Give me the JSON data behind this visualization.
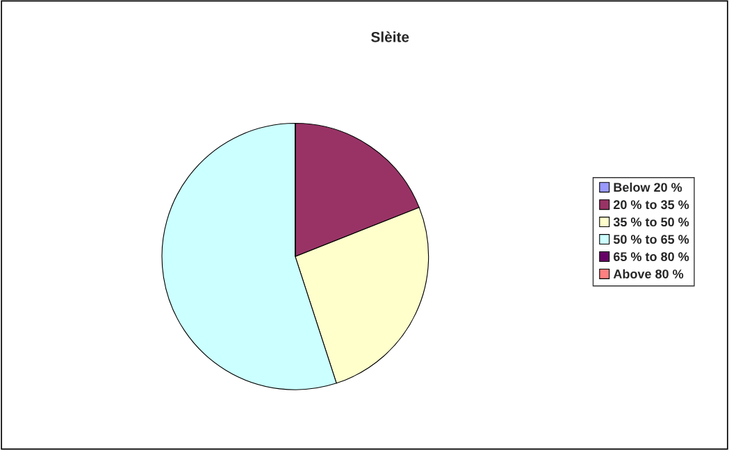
{
  "chart_data": {
    "type": "pie",
    "title": "Slèite",
    "categories": [
      "Below 20 %",
      "20 % to 35 %",
      "35 % to 50 %",
      "50 % to 65 %",
      "65 % to 80 %",
      "Above 80 %"
    ],
    "values": [
      0,
      19,
      26,
      55,
      0,
      0
    ],
    "colors": [
      "#9999ff",
      "#993366",
      "#ffffcc",
      "#ccffff",
      "#660066",
      "#ff8080"
    ],
    "legend": "right"
  }
}
